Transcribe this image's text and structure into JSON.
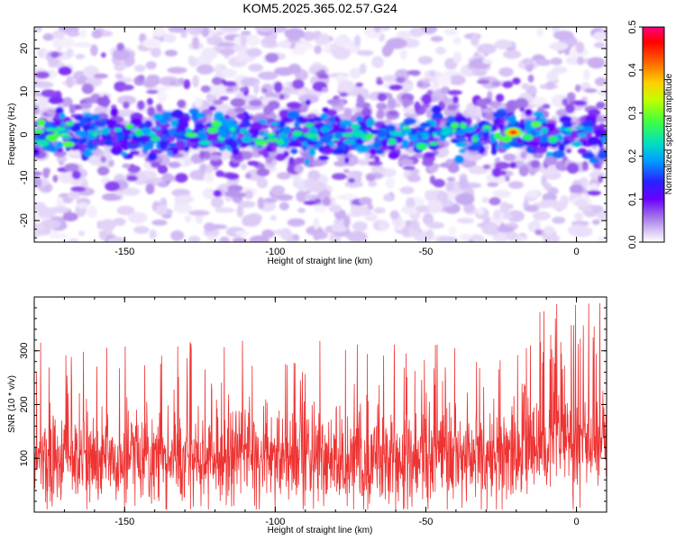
{
  "figure": {
    "title": "KOM5.2025.365.02.57.G24"
  },
  "chart_data": [
    {
      "type": "heatmap",
      "xlabel": "Height of straight line (km)",
      "ylabel": "Frequency (Hz)",
      "xlim": [
        -180,
        10
      ],
      "ylim": [
        -25,
        25
      ],
      "xticks": [
        -150,
        -100,
        -50,
        0
      ],
      "yticks": [
        -20,
        -10,
        0,
        10,
        20
      ],
      "colorbar": {
        "label": "Normalized spectral amplitude",
        "range": [
          0.0,
          0.5
        ],
        "ticks": [
          0.0,
          0.1,
          0.2,
          0.3,
          0.4,
          0.5
        ],
        "colormap": [
          "#ffffff",
          "#d9c6f5",
          "#a070e8",
          "#6a00ff",
          "#2a20ff",
          "#00a0ff",
          "#00e0c0",
          "#40ff40",
          "#c0ff00",
          "#ffd000",
          "#ff6000",
          "#ff0000",
          "#ff0080"
        ]
      },
      "band_center_hz": 0,
      "peak": {
        "x": -21,
        "y": 0.5,
        "amplitude": 0.45
      }
    },
    {
      "type": "line",
      "xlabel": "Height of straight line (km)",
      "ylabel": "SNR (10 * v/v)",
      "xlim": [
        -180,
        10
      ],
      "ylim": [
        0,
        400
      ],
      "xticks": [
        -150,
        -100,
        -50,
        0
      ],
      "yticks": [
        100,
        200,
        300
      ],
      "series_color": "#ee3333",
      "baseline_mean": 100,
      "typical_max": 300,
      "peak_max": 390
    }
  ]
}
